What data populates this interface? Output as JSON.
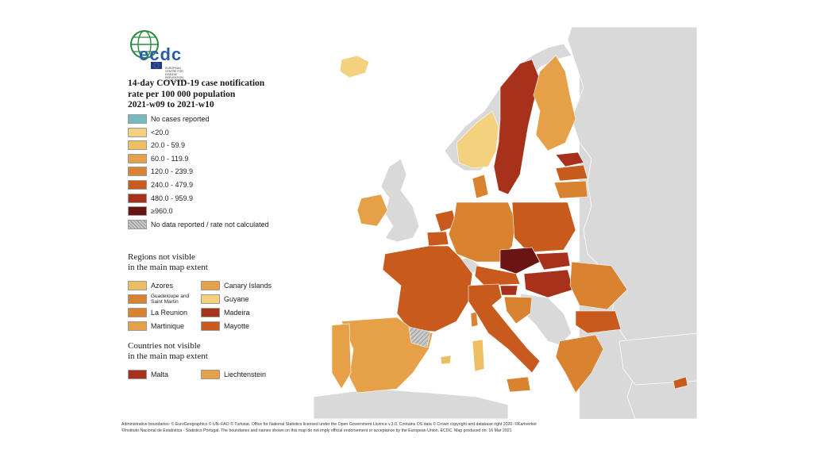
{
  "logo": {
    "text": "ecdc",
    "subtitle": "EUROPEAN CENTRE FOR DISEASE PREVENTION AND CONTROL"
  },
  "title": {
    "line1": "14-day COVID-19 case notification",
    "line2": "rate per 100 000 population",
    "line3": "2021-w09 to 2021-w10"
  },
  "legend": [
    {
      "label": "No cases reported",
      "color": "#79b8be"
    },
    {
      "label": "<20.0",
      "color": "#f3d17f"
    },
    {
      "label": "20.0 - 59.9",
      "color": "#eebf62"
    },
    {
      "label": "60.0 - 119.9",
      "color": "#e6a148"
    },
    {
      "label": "120.0 - 239.9",
      "color": "#d9822f"
    },
    {
      "label": "240.0 - 479.9",
      "color": "#c85a1e"
    },
    {
      "label": "480.0 - 959.9",
      "color": "#a7311a"
    },
    {
      "label": "≥960.0",
      "color": "#6b1414"
    },
    {
      "label": "No data reported / rate not calculated",
      "color": "hatch"
    }
  ],
  "regions_title": {
    "line1": "Regions not visible",
    "line2": "in the main map extent"
  },
  "regions": [
    {
      "label": "Azores",
      "color": "#eebf62"
    },
    {
      "label": "Canary Islands",
      "color": "#e6a148"
    },
    {
      "label": "Guadeloupe and Saint Martin",
      "color": "#d9822f"
    },
    {
      "label": "Guyane",
      "color": "#f3d17f"
    },
    {
      "label": "La Reunion",
      "color": "#d9822f"
    },
    {
      "label": "Madeira",
      "color": "#a7311a"
    },
    {
      "label": "Martinique",
      "color": "#e6a148"
    },
    {
      "label": "Mayotte",
      "color": "#c85a1e"
    }
  ],
  "countries_title": {
    "line1": "Countries not visible",
    "line2": "in the main map extent"
  },
  "countries": [
    {
      "label": "Malta",
      "color": "#a7311a"
    },
    {
      "label": "Liechtenstein",
      "color": "#e6a148"
    }
  ],
  "footer": {
    "line1": "Administrative boundaries: © EuroGeographics © UN–FAO © Turkstat. Office for National Statistics licensed under the Open Government Licence v.3.0. Contains OS data © Crown copyright and database right 2020. ©Kartverket",
    "line2": "©Instituto Nacional de Estatística - Statistics Portugal. The boundaries and names shown on this map do not imply official endorsement or acceptance by the European Union. ECDC. Map produced on: 16 Mar 2021"
  }
}
